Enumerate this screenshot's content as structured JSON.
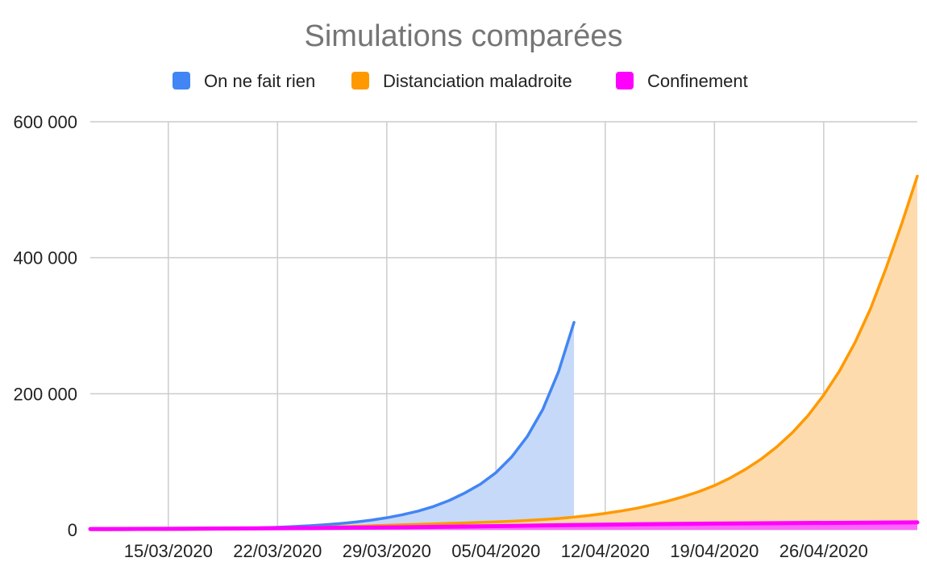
{
  "chart_data": {
    "type": "area",
    "title": "Simulations comparées",
    "xlabel": "",
    "ylabel": "",
    "ylim": [
      0,
      600000
    ],
    "y_ticks": [
      0,
      200000,
      400000,
      600000
    ],
    "y_tick_labels": [
      "0",
      "200 000",
      "400 000",
      "600 000"
    ],
    "x_range": [
      "2020-03-10",
      "2020-05-02"
    ],
    "x_ticks": [
      "2020-03-15",
      "2020-03-22",
      "2020-03-29",
      "2020-04-05",
      "2020-04-12",
      "2020-04-19",
      "2020-04-26"
    ],
    "x_tick_labels": [
      "15/03/2020",
      "22/03/2020",
      "29/03/2020",
      "05/04/2020",
      "12/04/2020",
      "19/04/2020",
      "26/04/2020"
    ],
    "grid": true,
    "legend_position": "top",
    "series": [
      {
        "name": "On ne fait rien",
        "color": "#4285f4",
        "fill_color": "#c6d9f8",
        "x": [
          "2020-03-10",
          "2020-03-11",
          "2020-03-12",
          "2020-03-13",
          "2020-03-14",
          "2020-03-15",
          "2020-03-16",
          "2020-03-17",
          "2020-03-18",
          "2020-03-19",
          "2020-03-20",
          "2020-03-21",
          "2020-03-22",
          "2020-03-23",
          "2020-03-24",
          "2020-03-25",
          "2020-03-26",
          "2020-03-27",
          "2020-03-28",
          "2020-03-29",
          "2020-03-30",
          "2020-03-31",
          "2020-04-01",
          "2020-04-02",
          "2020-04-03",
          "2020-04-04",
          "2020-04-05",
          "2020-04-06",
          "2020-04-07",
          "2020-04-08",
          "2020-04-09",
          "2020-04-10"
        ],
        "values": [
          100,
          140,
          190,
          260,
          350,
          480,
          650,
          880,
          1200,
          1600,
          2100,
          2800,
          3600,
          4600,
          5800,
          7200,
          9000,
          11300,
          14100,
          17600,
          22000,
          27400,
          34200,
          43000,
          54000,
          67000,
          84000,
          107000,
          137000,
          177000,
          232000,
          305000
        ]
      },
      {
        "name": "Distanciation maladroite",
        "color": "#ff9900",
        "fill_color": "#fddbad",
        "x": [
          "2020-03-10",
          "2020-03-11",
          "2020-03-12",
          "2020-03-13",
          "2020-03-14",
          "2020-03-15",
          "2020-03-16",
          "2020-03-17",
          "2020-03-18",
          "2020-03-19",
          "2020-03-20",
          "2020-03-21",
          "2020-03-22",
          "2020-03-23",
          "2020-03-24",
          "2020-03-25",
          "2020-03-26",
          "2020-03-27",
          "2020-03-28",
          "2020-03-29",
          "2020-03-30",
          "2020-03-31",
          "2020-04-01",
          "2020-04-02",
          "2020-04-03",
          "2020-04-04",
          "2020-04-05",
          "2020-04-06",
          "2020-04-07",
          "2020-04-08",
          "2020-04-09",
          "2020-04-10",
          "2020-04-11",
          "2020-04-12",
          "2020-04-13",
          "2020-04-14",
          "2020-04-15",
          "2020-04-16",
          "2020-04-17",
          "2020-04-18",
          "2020-04-19",
          "2020-04-20",
          "2020-04-21",
          "2020-04-22",
          "2020-04-23",
          "2020-04-24",
          "2020-04-25",
          "2020-04-26",
          "2020-04-27",
          "2020-04-28",
          "2020-04-29",
          "2020-04-30",
          "2020-05-01",
          "2020-05-02"
        ],
        "values": [
          100,
          140,
          190,
          250,
          330,
          430,
          560,
          720,
          930,
          1200,
          1500,
          1900,
          2300,
          2800,
          3300,
          3900,
          4500,
          5100,
          5800,
          6500,
          7200,
          7900,
          8600,
          9300,
          10000,
          10800,
          11600,
          12500,
          13600,
          14900,
          16500,
          18600,
          21000,
          24000,
          27500,
          31500,
          36500,
          42000,
          48500,
          56000,
          65000,
          76000,
          89000,
          104000,
          122000,
          143000,
          168000,
          198000,
          233000,
          275000,
          325000,
          385000,
          450000,
          520000
        ]
      },
      {
        "name": "Confinement",
        "color": "#ff00ff",
        "fill_color": "#ff66ff",
        "x": [
          "2020-03-10",
          "2020-03-15",
          "2020-03-20",
          "2020-03-25",
          "2020-03-30",
          "2020-04-04",
          "2020-04-09",
          "2020-04-14",
          "2020-04-19",
          "2020-04-24",
          "2020-04-29",
          "2020-05-02"
        ],
        "values": [
          1000,
          1400,
          1900,
          2600,
          3600,
          5000,
          6600,
          8000,
          9000,
          9800,
          10400,
          10800
        ]
      }
    ]
  }
}
